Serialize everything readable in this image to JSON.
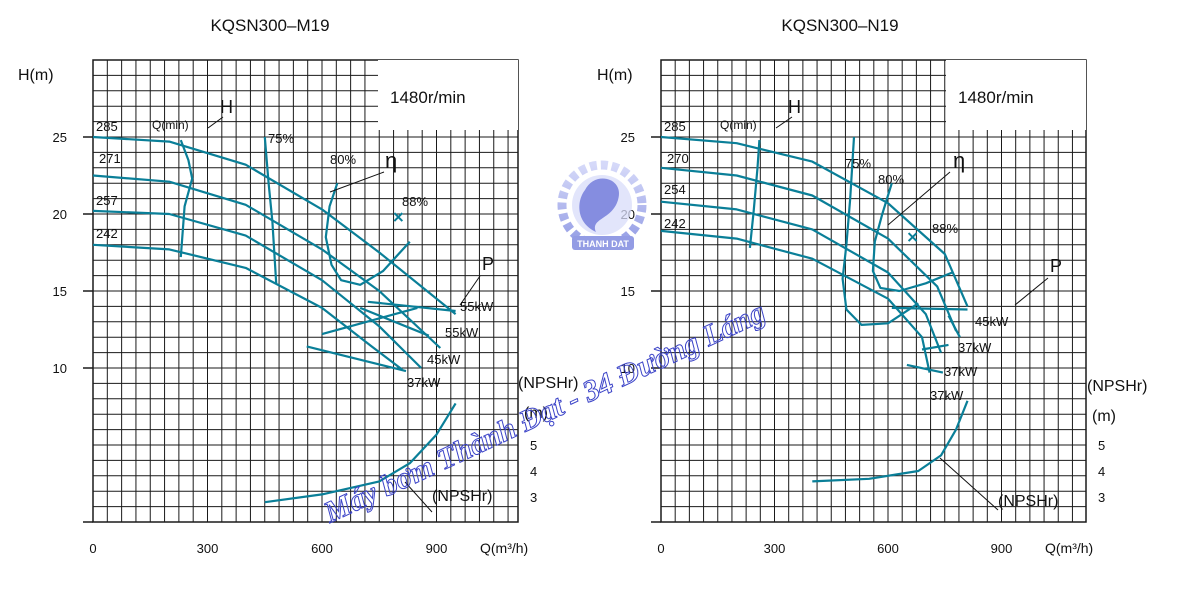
{
  "colors": {
    "curve": "#0a7f98",
    "grid": "#1a1a1a",
    "text": "#111111",
    "watermark": "#3c44c8"
  },
  "watermark": {
    "text": "Máy bơm Thành Đạt - 34 Đường Láng",
    "logo_text": "THANH DAT"
  },
  "chart_data": [
    {
      "type": "line",
      "title": "KQSN300–M19",
      "speed_label": "1480r/min",
      "ylabel": "H(m)",
      "xlabel": "Q(m³/h)",
      "npsh_axis_label": "(NPSHr)",
      "npsh_unit_label": "(m)",
      "qmin_label": "Q(min)",
      "head_label": "H",
      "eff_label": "η",
      "power_label": "P",
      "npsh_curve_label": "(NPSHr)",
      "x_ticks": [
        "0",
        "300",
        "600",
        "900"
      ],
      "y_ticks": [
        "25",
        "20",
        "15",
        "10"
      ],
      "npsh_ticks": [
        "5",
        "4",
        "3"
      ],
      "xlim": [
        0,
        1100
      ],
      "ylim": [
        0,
        30
      ],
      "npsh_lim": [
        0,
        10
      ],
      "grid": true,
      "impeller_diameters": [
        {
          "label": "285",
          "x": [
            0,
            200,
            400,
            600,
            750,
            950
          ],
          "y": [
            25,
            24.7,
            23.2,
            20.3,
            17.5,
            13.5
          ]
        },
        {
          "label": "271",
          "x": [
            0,
            200,
            400,
            600,
            750,
            910
          ],
          "y": [
            22.5,
            22.1,
            20.6,
            17.7,
            15,
            11.3
          ]
        },
        {
          "label": "257",
          "x": [
            0,
            200,
            400,
            600,
            750,
            860
          ],
          "y": [
            20.2,
            20,
            18.6,
            15.7,
            12.7,
            10
          ]
        },
        {
          "label": "242",
          "x": [
            0,
            200,
            400,
            600,
            730,
            810
          ],
          "y": [
            18,
            17.7,
            16.5,
            13.9,
            11.4,
            9.9
          ]
        }
      ],
      "diameter_labels": [
        "285",
        "271",
        "257",
        "242"
      ],
      "min_flow_line": {
        "x": [
          230,
          250,
          260,
          240,
          230
        ],
        "y": [
          24.8,
          23.5,
          22.3,
          20.5,
          17.2
        ]
      },
      "efficiency_contours": [
        {
          "label": "75%",
          "x": [
            450,
            460,
            470,
            475,
            480
          ],
          "y": [
            25,
            22,
            19.5,
            17.5,
            15.5
          ]
        },
        {
          "label": "80%",
          "x": [
            640,
            620,
            610,
            625,
            650,
            700,
            760,
            830
          ],
          "y": [
            22,
            20.5,
            18.5,
            16.7,
            15.7,
            15.4,
            16.3,
            18.2
          ]
        },
        {
          "label": "88%",
          "x": [
            800
          ],
          "y": [
            19.8
          ]
        }
      ],
      "power_lines": [
        {
          "label": "55kW",
          "x": [
            720,
            950
          ],
          "y": [
            14.3,
            13.7
          ]
        },
        {
          "label": "55kW",
          "x": [
            700,
            880
          ],
          "y": [
            13.9,
            12.1
          ]
        },
        {
          "label": "45kW",
          "x": [
            600,
            850
          ],
          "y": [
            12.2,
            13.9
          ]
        },
        {
          "label": "37kW",
          "x": [
            560,
            820
          ],
          "y": [
            11.4,
            9.8
          ]
        }
      ],
      "npsh_curve": {
        "x": [
          450,
          600,
          750,
          830,
          900,
          950
        ],
        "y": [
          2.8,
          3.1,
          3.6,
          4.3,
          5.4,
          6.6
        ]
      }
    },
    {
      "type": "line",
      "title": "KQSN300–N19",
      "speed_label": "1480r/min",
      "ylabel": "H(m)",
      "xlabel": "Q(m³/h)",
      "npsh_axis_label": "(NPSHr)",
      "npsh_unit_label": "(m)",
      "qmin_label": "Q(min)",
      "head_label": "H",
      "eff_label": "η",
      "power_label": "P",
      "npsh_curve_label": "(NPSHr)",
      "x_ticks": [
        "0",
        "300",
        "600",
        "900"
      ],
      "y_ticks": [
        "25",
        "20",
        "15",
        "10"
      ],
      "npsh_ticks": [
        "5",
        "4",
        "3"
      ],
      "xlim": [
        0,
        1100
      ],
      "ylim": [
        0,
        30
      ],
      "npsh_lim": [
        0,
        10
      ],
      "grid": true,
      "impeller_diameters": [
        {
          "label": "285",
          "x": [
            0,
            200,
            400,
            600,
            750,
            810
          ],
          "y": [
            25,
            24.6,
            23.4,
            20.7,
            17.4,
            14
          ]
        },
        {
          "label": "270",
          "x": [
            0,
            200,
            400,
            600,
            730,
            780
          ],
          "y": [
            23,
            22.5,
            21.2,
            18.4,
            15.3,
            12.4
          ]
        },
        {
          "label": "254",
          "x": [
            0,
            200,
            400,
            600,
            700,
            740
          ],
          "y": [
            20.8,
            20.3,
            19,
            16.2,
            13.5,
            11
          ]
        },
        {
          "label": "242",
          "x": [
            0,
            200,
            400,
            600,
            690,
            710
          ],
          "y": [
            18.9,
            18.4,
            17.1,
            14.5,
            12,
            9.7
          ]
        }
      ],
      "diameter_labels": [
        "285",
        "270",
        "254",
        "242"
      ],
      "min_flow_line": {
        "x": [
          260,
          255,
          245,
          235
        ],
        "y": [
          24.8,
          23,
          20.2,
          17.8
        ]
      },
      "efficiency_contours": [
        {
          "label": "75%",
          "x": [
            510,
            500,
            490,
            480,
            490,
            530,
            600,
            680
          ],
          "y": [
            25,
            21,
            18,
            15.8,
            13.8,
            12.8,
            12.9,
            14.2
          ]
        },
        {
          "label": "80%",
          "x": [
            610,
            585,
            565,
            560,
            580,
            630,
            700,
            770
          ],
          "y": [
            22,
            20,
            18.2,
            16.3,
            15.2,
            15,
            15.5,
            16.2
          ]
        },
        {
          "label": "88%",
          "x": [
            665
          ],
          "y": [
            18.5
          ]
        }
      ],
      "power_lines": [
        {
          "label": "45kW",
          "x": [
            610,
            810
          ],
          "y": [
            13.9,
            13.8
          ]
        },
        {
          "label": "37kW",
          "x": [
            760,
            790
          ],
          "y": [
            13.4,
            12
          ]
        },
        {
          "label": "37kW",
          "x": [
            690,
            760
          ],
          "y": [
            11.2,
            11.5
          ]
        },
        {
          "label": "37kW",
          "x": [
            650,
            745
          ],
          "y": [
            10.2,
            9.7
          ]
        }
      ],
      "npsh_curve": {
        "x": [
          400,
          550,
          680,
          740,
          780,
          810
        ],
        "y": [
          3.6,
          3.7,
          4,
          4.6,
          5.6,
          6.7
        ]
      }
    }
  ]
}
